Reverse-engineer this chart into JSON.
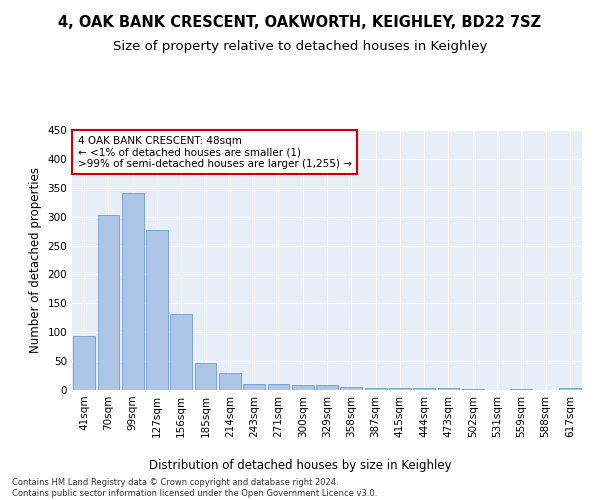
{
  "title1": "4, OAK BANK CRESCENT, OAKWORTH, KEIGHLEY, BD22 7SZ",
  "title2": "Size of property relative to detached houses in Keighley",
  "xlabel": "Distribution of detached houses by size in Keighley",
  "ylabel": "Number of detached properties",
  "footer1": "Contains HM Land Registry data © Crown copyright and database right 2024.",
  "footer2": "Contains public sector information licensed under the Open Government Licence v3.0.",
  "categories": [
    "41sqm",
    "70sqm",
    "99sqm",
    "127sqm",
    "156sqm",
    "185sqm",
    "214sqm",
    "243sqm",
    "271sqm",
    "300sqm",
    "329sqm",
    "358sqm",
    "387sqm",
    "415sqm",
    "444sqm",
    "473sqm",
    "502sqm",
    "531sqm",
    "559sqm",
    "588sqm",
    "617sqm"
  ],
  "values": [
    93,
    303,
    341,
    277,
    132,
    46,
    30,
    10,
    10,
    8,
    8,
    5,
    3,
    3,
    4,
    3,
    1,
    0,
    2,
    0,
    3
  ],
  "bar_color": "#adc6e8",
  "bar_edge_color": "#5b8fc7",
  "annotation_line1": "4 OAK BANK CRESCENT: 48sqm",
  "annotation_line2": "← <1% of detached houses are smaller (1)",
  "annotation_line3": ">99% of semi-detached houses are larger (1,255) →",
  "annotation_box_color": "#ffffff",
  "annotation_border_color": "#cc0000",
  "ylim": [
    0,
    450
  ],
  "yticks": [
    0,
    50,
    100,
    150,
    200,
    250,
    300,
    350,
    400,
    450
  ],
  "fig_bg_color": "#ffffff",
  "plot_bg_color": "#e8eef8",
  "grid_color": "#ffffff",
  "title1_fontsize": 10.5,
  "title2_fontsize": 9.5,
  "axis_label_fontsize": 8.5,
  "tick_fontsize": 7.5,
  "footer_fontsize": 6.0,
  "annotation_fontsize": 7.5
}
